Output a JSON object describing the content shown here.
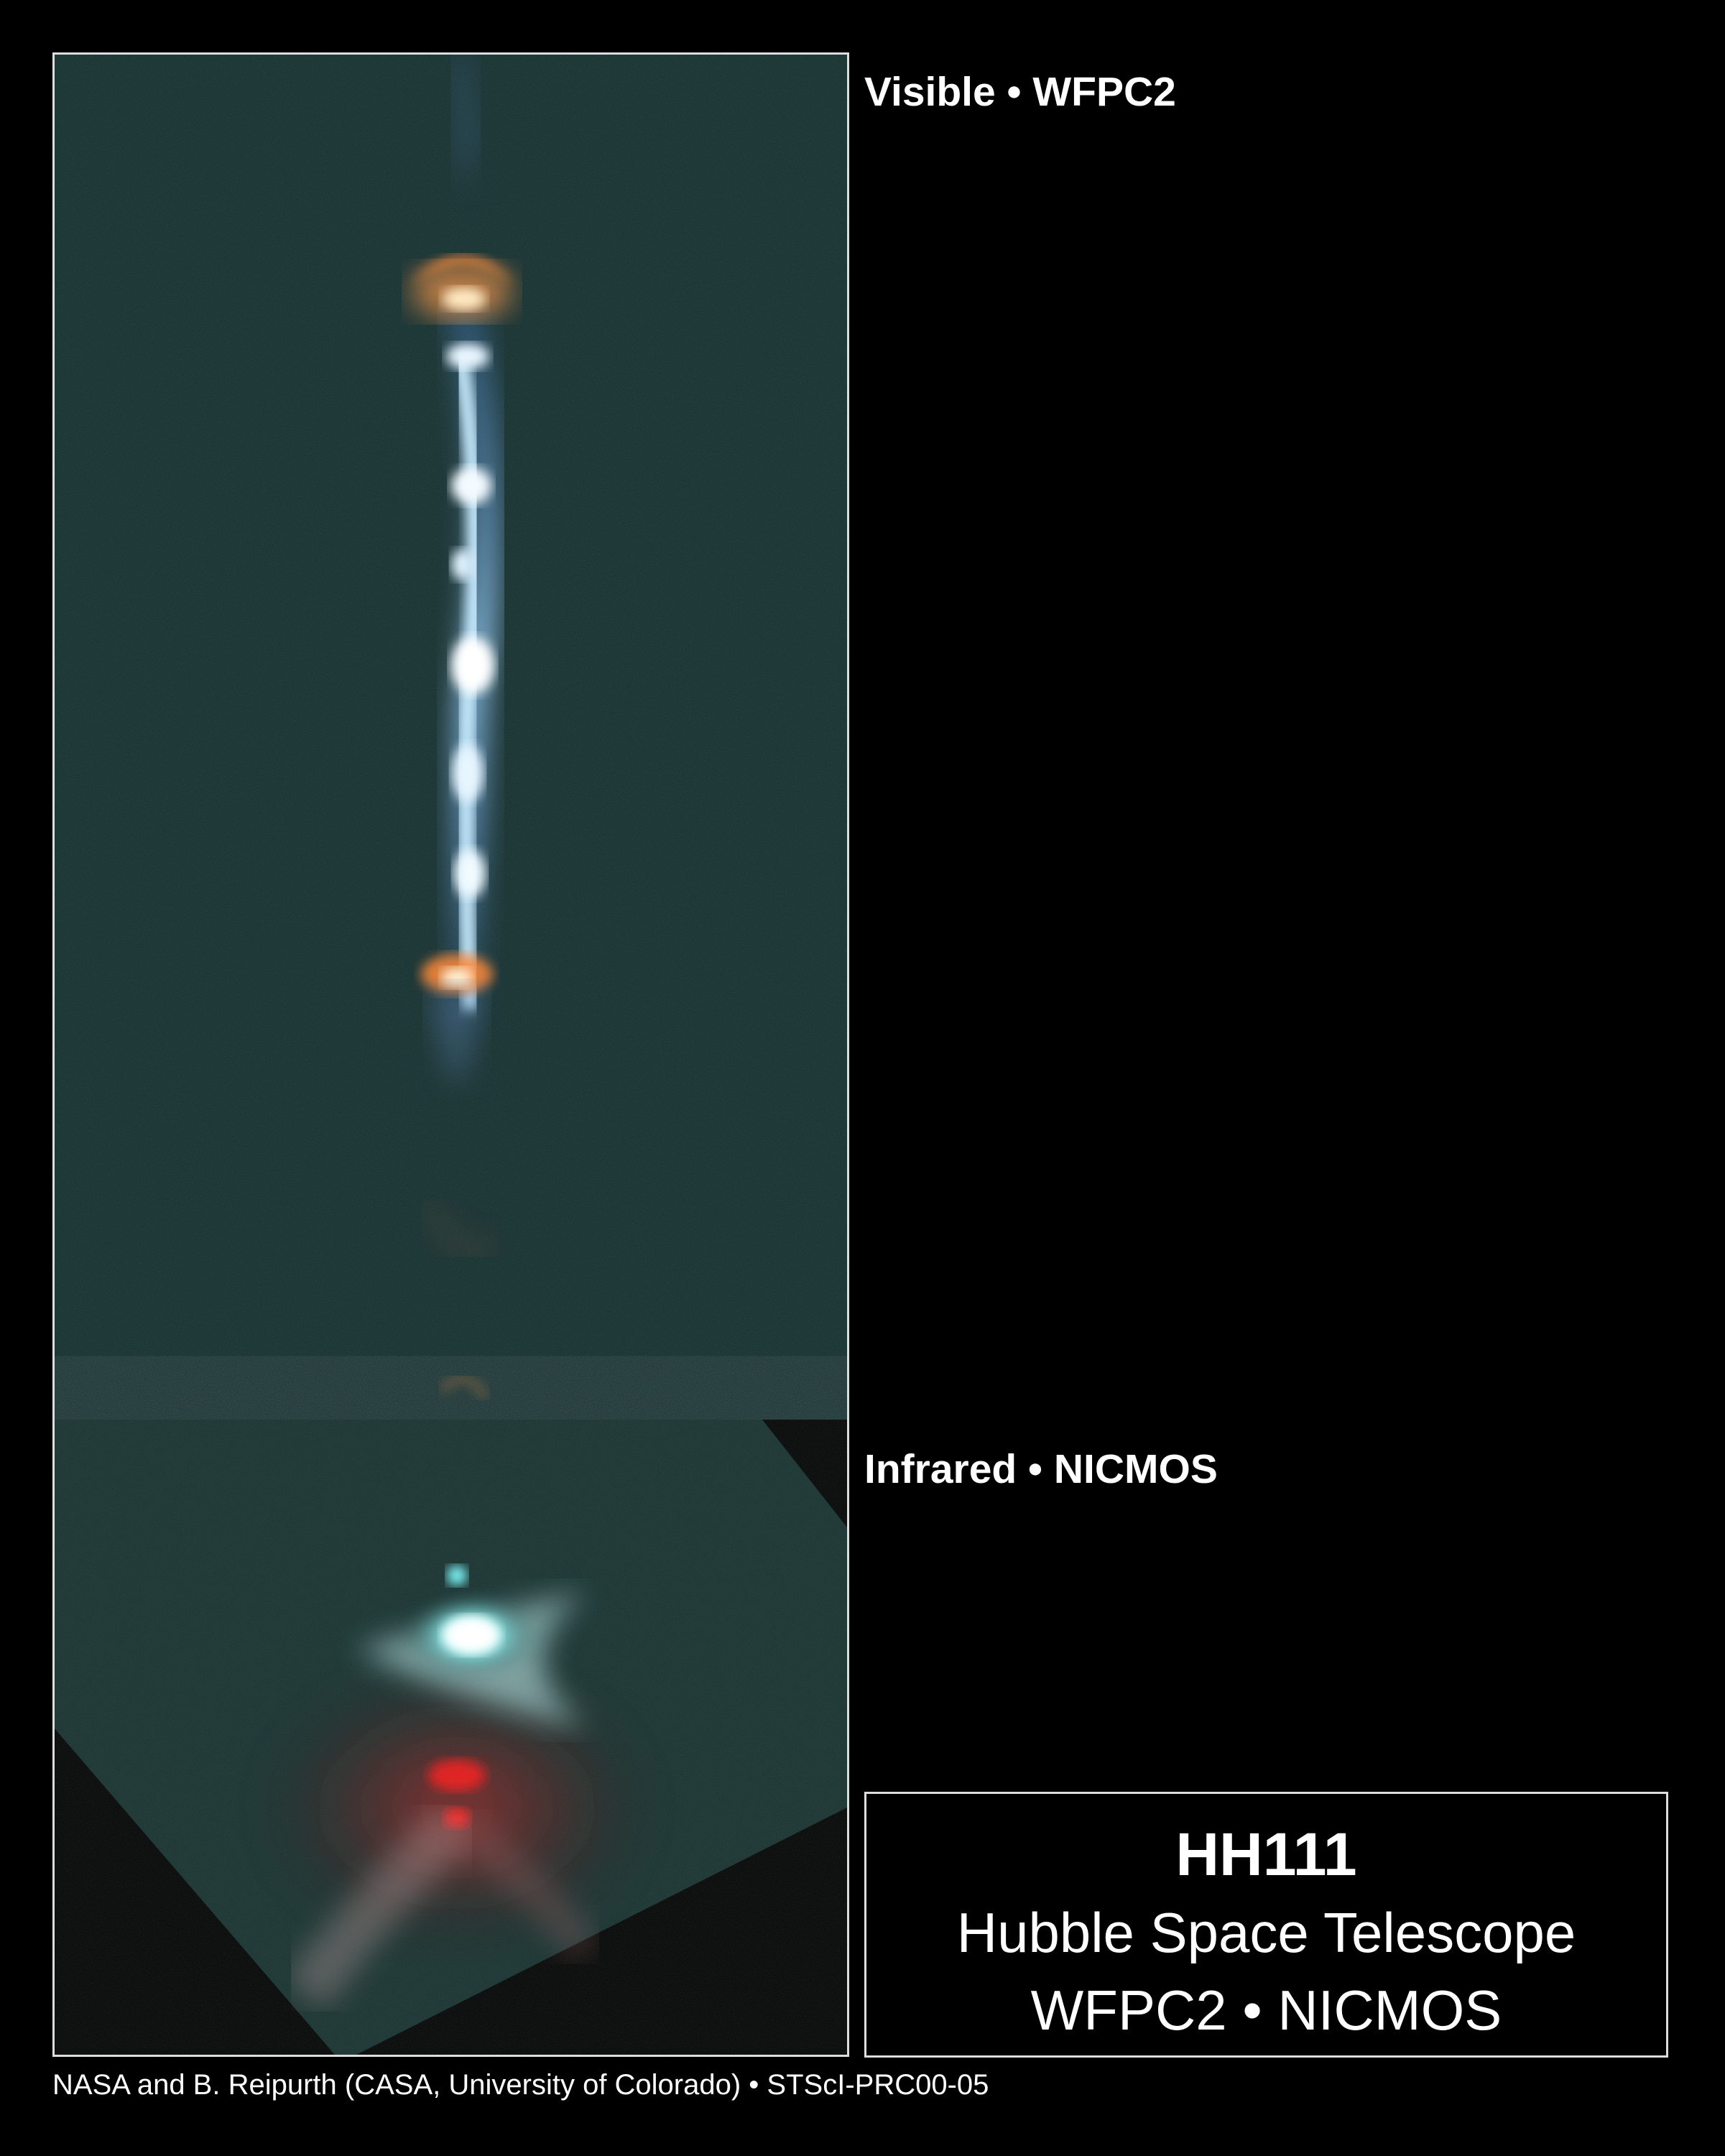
{
  "panels": {
    "visible_label": "Visible • WFPC2",
    "infrared_label": "Infrared • NICMOS"
  },
  "info": {
    "title": "HH111",
    "telescope": "Hubble Space Telescope",
    "instruments": "WFPC2 • NICMOS"
  },
  "credit": "NASA and B. Reipurth (CASA, University of Colorado) • STScI-PRC00-05",
  "colors": {
    "background": "#000000",
    "frame": "#dddddd",
    "visible_field": "#0f2a2a",
    "jet_blue": "#7fc4ff",
    "bow_shock_orange": "#ff8a3a",
    "infrared_cyan": "#5ff0f0",
    "infrared_red": "#d01818"
  }
}
